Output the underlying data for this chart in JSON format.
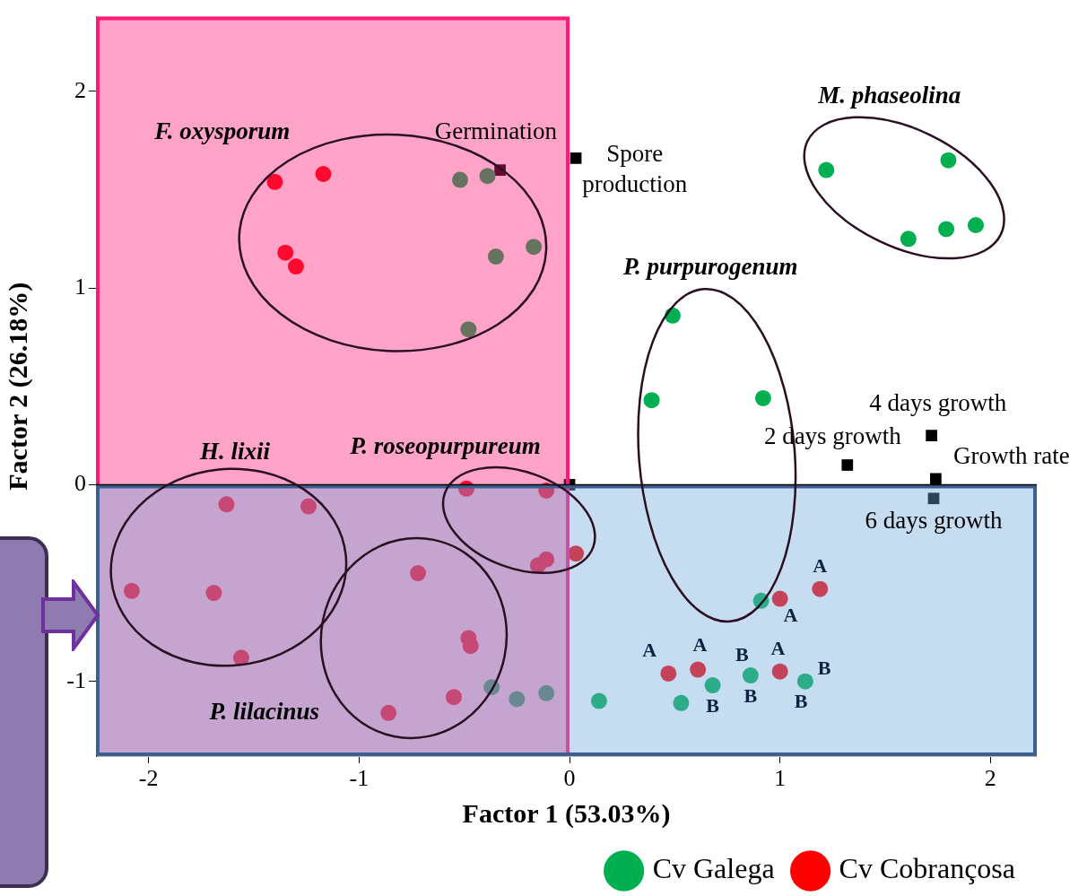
{
  "chart_data": {
    "type": "scatter",
    "xlabel": "Factor 1 (53.03%)",
    "ylabel": "Factor 2 (26.18%)",
    "xlim": [
      -2.25,
      2.22
    ],
    "ylim": [
      -1.38,
      2.38
    ],
    "xticks": [
      -2,
      -1,
      0,
      1,
      2
    ],
    "yticks": [
      -1,
      0,
      1,
      2
    ],
    "grid": false,
    "legend": "bottom right",
    "series": [
      {
        "name": "Cv Galega",
        "color": "#00b050",
        "marker": "circle",
        "x": [
          -0.52,
          -0.39,
          -0.17,
          -0.35,
          -0.48,
          1.22,
          1.8,
          1.93,
          1.79,
          1.61,
          0.49,
          0.39,
          0.92,
          0.91,
          0.86,
          0.68,
          0.53,
          0.14,
          1.12,
          -0.37,
          -0.25,
          -0.11
        ],
        "values": [
          1.55,
          1.57,
          1.21,
          1.16,
          0.79,
          1.6,
          1.65,
          1.32,
          1.3,
          1.25,
          0.86,
          0.43,
          0.44,
          -0.59,
          -0.97,
          -1.02,
          -1.11,
          -1.1,
          -1.0,
          -1.03,
          -1.09,
          -1.06
        ]
      },
      {
        "name": "Cv Cobrançosa",
        "color": "#ff0000",
        "marker": "circle",
        "x": [
          -1.4,
          -1.17,
          -1.35,
          -1.3,
          -1.63,
          -1.24,
          -2.08,
          -1.69,
          -1.56,
          -0.72,
          -0.48,
          -0.47,
          -0.55,
          -0.86,
          -0.49,
          -0.11,
          -0.11,
          -0.15,
          0.03,
          1.0,
          1.19,
          0.47,
          0.61,
          1.0
        ],
        "values": [
          1.54,
          1.58,
          1.18,
          1.11,
          -0.1,
          -0.11,
          -0.54,
          -0.55,
          -0.88,
          -0.45,
          -0.78,
          -0.82,
          -1.08,
          -1.16,
          -0.02,
          -0.03,
          -0.38,
          -0.41,
          -0.35,
          -0.58,
          -0.53,
          -0.96,
          -0.94,
          -0.95
        ]
      },
      {
        "color": "#000000",
        "marker": "square",
        "x": [
          -0.33,
          0.03,
          0.0,
          1.32,
          1.72,
          1.74,
          1.73
        ],
        "values": [
          1.6,
          1.66,
          0.0,
          0.1,
          0.25,
          0.03,
          -0.07
        ]
      }
    ],
    "bands": [
      {
        "axis": "x",
        "from": -2.25,
        "to": 0,
        "color": "#ff1a75"
      },
      {
        "axis": "y",
        "from": -1.38,
        "to": 0,
        "color": "#6fa8dc"
      }
    ],
    "ref_lines": [
      {
        "axis": "y",
        "value": 0,
        "color": "#000000"
      }
    ],
    "annotations": [
      "F. oxysporum",
      "M. phaseolina",
      "P. purpurogenum",
      "H. lixii",
      "P. roseopurpureum",
      "P. lilacinus",
      "Germination",
      "Spore\nproduction",
      "4 days growth",
      "2 days growth",
      "Growth rate",
      "6 days growth",
      "A",
      "A",
      "A",
      "A",
      "B",
      "A",
      "B",
      "B",
      "B",
      "B"
    ]
  }
}
